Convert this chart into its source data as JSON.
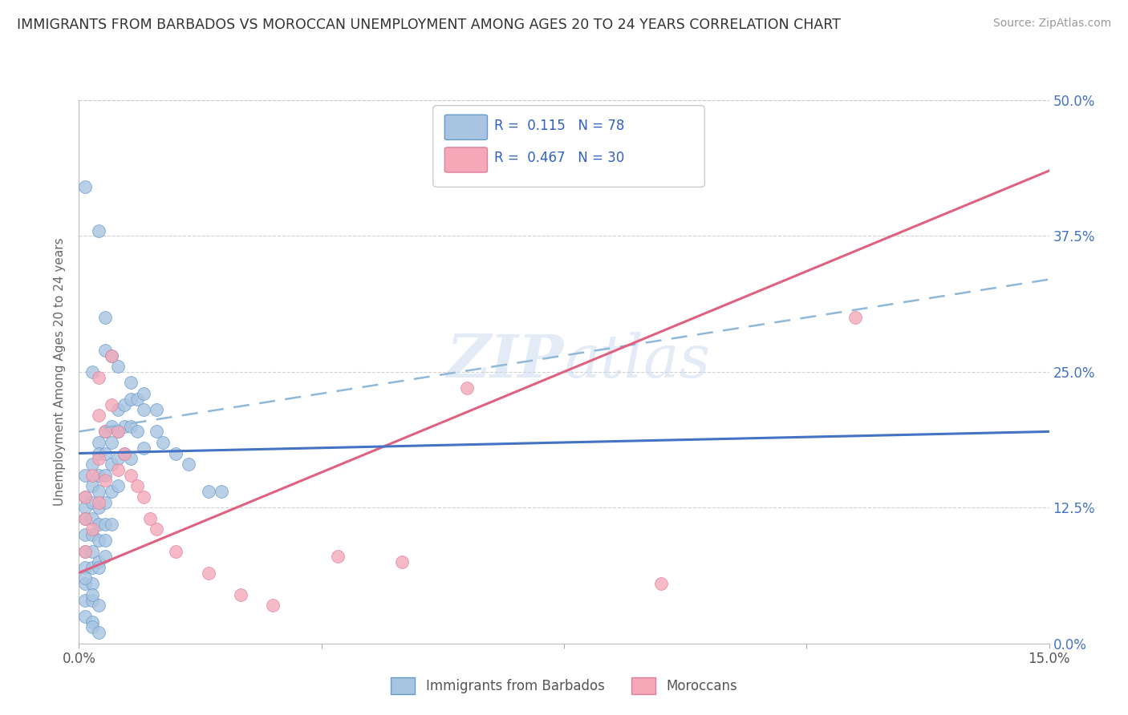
{
  "title": "IMMIGRANTS FROM BARBADOS VS MOROCCAN UNEMPLOYMENT AMONG AGES 20 TO 24 YEARS CORRELATION CHART",
  "source": "Source: ZipAtlas.com",
  "ylabel": "Unemployment Among Ages 20 to 24 years",
  "watermark": "ZIPatlas",
  "xlim": [
    0.0,
    0.15
  ],
  "ylim": [
    0.0,
    0.5
  ],
  "ytick_vals": [
    0.0,
    0.125,
    0.25,
    0.375,
    0.5
  ],
  "ytick_labels": [
    "0.0%",
    "12.5%",
    "25.0%",
    "37.5%",
    "50.0%"
  ],
  "xtick_vals": [
    0.0,
    0.0375,
    0.075,
    0.1125,
    0.15
  ],
  "xtick_labels": [
    "0.0%",
    "",
    "",
    "",
    "15.0%"
  ],
  "color_blue": "#a8c4e0",
  "color_pink": "#f4a8b8",
  "edge_blue": "#6699cc",
  "edge_pink": "#e080a0",
  "line_blue": "#4472c4",
  "line_pink": "#e06080",
  "line_dashed_color": "#90b8d8",
  "background_color": "#ffffff",
  "grid_color": "#cccccc",
  "title_color": "#333333",
  "axis_label_color": "#666666",
  "right_axis_color": "#4472c4",
  "legend_text_color": "#3060c0",
  "blue_trend_x": [
    0.0,
    0.15
  ],
  "blue_trend_y": [
    0.175,
    0.195
  ],
  "pink_trend_x": [
    0.0,
    0.15
  ],
  "pink_trend_y": [
    0.065,
    0.435
  ],
  "dashed_trend_x": [
    0.0,
    0.15
  ],
  "dashed_trend_y": [
    0.195,
    0.335
  ],
  "blue_pts_x": [
    0.001,
    0.001,
    0.001,
    0.001,
    0.001,
    0.001,
    0.001,
    0.001,
    0.001,
    0.001,
    0.002,
    0.002,
    0.002,
    0.002,
    0.002,
    0.002,
    0.002,
    0.002,
    0.002,
    0.002,
    0.003,
    0.003,
    0.003,
    0.003,
    0.003,
    0.003,
    0.003,
    0.003,
    0.004,
    0.004,
    0.004,
    0.004,
    0.004,
    0.004,
    0.005,
    0.005,
    0.005,
    0.005,
    0.005,
    0.006,
    0.006,
    0.006,
    0.006,
    0.007,
    0.007,
    0.007,
    0.008,
    0.008,
    0.008,
    0.009,
    0.009,
    0.01,
    0.01,
    0.012,
    0.013,
    0.015,
    0.017,
    0.02,
    0.022,
    0.003,
    0.004,
    0.004,
    0.005,
    0.006,
    0.008,
    0.01,
    0.012,
    0.001,
    0.002,
    0.003,
    0.002,
    0.003,
    0.001,
    0.002,
    0.004,
    0.003
  ],
  "blue_pts_y": [
    0.155,
    0.135,
    0.125,
    0.115,
    0.1,
    0.085,
    0.07,
    0.055,
    0.04,
    0.025,
    0.165,
    0.145,
    0.13,
    0.115,
    0.1,
    0.085,
    0.07,
    0.055,
    0.04,
    0.02,
    0.185,
    0.175,
    0.155,
    0.14,
    0.125,
    0.11,
    0.095,
    0.075,
    0.195,
    0.175,
    0.155,
    0.13,
    0.11,
    0.08,
    0.2,
    0.185,
    0.165,
    0.14,
    0.11,
    0.215,
    0.195,
    0.17,
    0.145,
    0.22,
    0.2,
    0.175,
    0.225,
    0.2,
    0.17,
    0.225,
    0.195,
    0.215,
    0.18,
    0.195,
    0.185,
    0.175,
    0.165,
    0.14,
    0.14,
    0.38,
    0.3,
    0.27,
    0.265,
    0.255,
    0.24,
    0.23,
    0.215,
    0.06,
    0.045,
    0.035,
    0.015,
    0.01,
    0.42,
    0.25,
    0.095,
    0.07
  ],
  "pink_pts_x": [
    0.001,
    0.001,
    0.001,
    0.002,
    0.002,
    0.003,
    0.003,
    0.003,
    0.003,
    0.004,
    0.004,
    0.005,
    0.005,
    0.006,
    0.006,
    0.007,
    0.008,
    0.009,
    0.01,
    0.011,
    0.012,
    0.015,
    0.02,
    0.025,
    0.03,
    0.04,
    0.05,
    0.06,
    0.12,
    0.09
  ],
  "pink_pts_y": [
    0.135,
    0.115,
    0.085,
    0.155,
    0.105,
    0.245,
    0.21,
    0.17,
    0.13,
    0.195,
    0.15,
    0.265,
    0.22,
    0.195,
    0.16,
    0.175,
    0.155,
    0.145,
    0.135,
    0.115,
    0.105,
    0.085,
    0.065,
    0.045,
    0.035,
    0.08,
    0.075,
    0.235,
    0.3,
    0.055
  ]
}
